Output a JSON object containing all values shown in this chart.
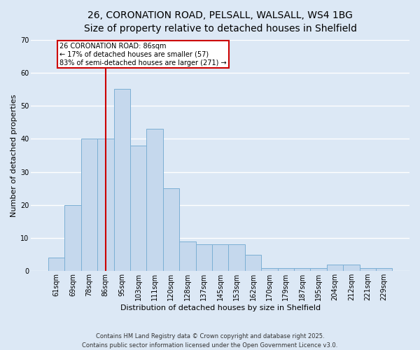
{
  "title1": "26, CORONATION ROAD, PELSALL, WALSALL, WS4 1BG",
  "title2": "Size of property relative to detached houses in Shelfield",
  "xlabel": "Distribution of detached houses by size in Shelfield",
  "ylabel": "Number of detached properties",
  "categories": [
    "61sqm",
    "69sqm",
    "78sqm",
    "86sqm",
    "95sqm",
    "103sqm",
    "111sqm",
    "120sqm",
    "128sqm",
    "137sqm",
    "145sqm",
    "153sqm",
    "162sqm",
    "170sqm",
    "179sqm",
    "187sqm",
    "195sqm",
    "204sqm",
    "212sqm",
    "221sqm",
    "229sqm"
  ],
  "values": [
    4,
    20,
    40,
    40,
    55,
    38,
    43,
    25,
    9,
    8,
    8,
    8,
    5,
    1,
    1,
    1,
    1,
    2,
    2,
    1,
    1
  ],
  "bar_color": "#c5d8ed",
  "bar_edge_color": "#7bafd4",
  "bg_color": "#dce8f5",
  "grid_color": "#ffffff",
  "vline_x": 3,
  "vline_color": "#cc0000",
  "annotation_text": "26 CORONATION ROAD: 86sqm\n← 17% of detached houses are smaller (57)\n83% of semi-detached houses are larger (271) →",
  "annotation_box_color": "#cc0000",
  "ylim": [
    0,
    70
  ],
  "yticks": [
    0,
    10,
    20,
    30,
    40,
    50,
    60,
    70
  ],
  "footer": "Contains HM Land Registry data © Crown copyright and database right 2025.\nContains public sector information licensed under the Open Government Licence v3.0.",
  "title_fontsize": 10,
  "subtitle_fontsize": 9,
  "label_fontsize": 8,
  "tick_fontsize": 7,
  "footer_fontsize": 6
}
